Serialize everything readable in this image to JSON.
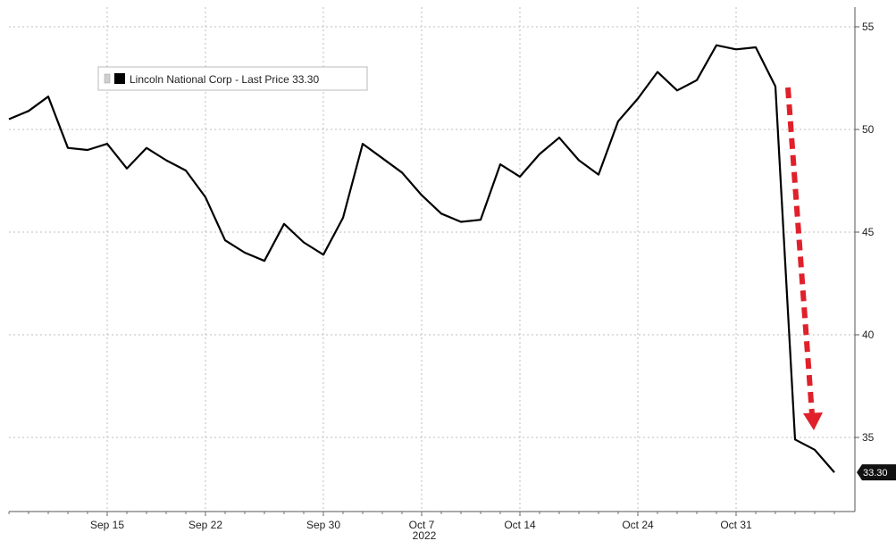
{
  "chart_data": {
    "type": "line",
    "series": [
      {
        "name": "Lincoln National Corp - Last Price",
        "last_value": "33.30",
        "color": "#000000",
        "dates": [
          "2022-09-08",
          "2022-09-09",
          "2022-09-12",
          "2022-09-13",
          "2022-09-14",
          "2022-09-15",
          "2022-09-16",
          "2022-09-19",
          "2022-09-20",
          "2022-09-21",
          "2022-09-22",
          "2022-09-23",
          "2022-09-26",
          "2022-09-27",
          "2022-09-28",
          "2022-09-29",
          "2022-09-30",
          "2022-10-03",
          "2022-10-04",
          "2022-10-05",
          "2022-10-06",
          "2022-10-07",
          "2022-10-10",
          "2022-10-11",
          "2022-10-12",
          "2022-10-13",
          "2022-10-14",
          "2022-10-17",
          "2022-10-18",
          "2022-10-19",
          "2022-10-20",
          "2022-10-21",
          "2022-10-24",
          "2022-10-25",
          "2022-10-26",
          "2022-10-27",
          "2022-10-28",
          "2022-10-31",
          "2022-11-01",
          "2022-11-02",
          "2022-11-03",
          "2022-11-04",
          "2022-11-07"
        ],
        "values": [
          50.5,
          50.9,
          51.6,
          49.1,
          49.0,
          49.3,
          48.1,
          49.1,
          48.5,
          48.0,
          46.7,
          44.6,
          44.0,
          43.6,
          45.4,
          44.5,
          43.9,
          45.7,
          49.3,
          48.6,
          47.9,
          46.8,
          45.9,
          45.5,
          45.6,
          48.3,
          47.7,
          48.8,
          49.6,
          48.5,
          47.8,
          50.4,
          51.5,
          52.8,
          51.9,
          52.4,
          54.1,
          53.9,
          54.0,
          52.1,
          34.9,
          34.4,
          33.3
        ]
      }
    ],
    "x_tick_labels": [
      {
        "date": "2022-09-15",
        "label": "Sep 15"
      },
      {
        "date": "2022-09-22",
        "label": "Sep 22"
      },
      {
        "date": "2022-09-30",
        "label": "Sep 30"
      },
      {
        "date": "2022-10-07",
        "label": "Oct 7"
      },
      {
        "date": "2022-10-14",
        "label": "Oct 14"
      },
      {
        "date": "2022-10-24",
        "label": "Oct 24"
      },
      {
        "date": "2022-10-31",
        "label": "Oct 31"
      }
    ],
    "x_year_label": "2022",
    "y_ticks": [
      35,
      40,
      45,
      50,
      55
    ],
    "ylim": [
      32,
      55.8
    ],
    "y_axis_position": "right",
    "grid": true,
    "legend_position": "top-left",
    "legend_label": "Lincoln National Corp - Last Price 33.30",
    "annotation": {
      "type": "arrow",
      "style": "dashed",
      "direction": "down",
      "color": "#e0202a"
    },
    "title": "",
    "xlabel": "",
    "ylabel": ""
  }
}
